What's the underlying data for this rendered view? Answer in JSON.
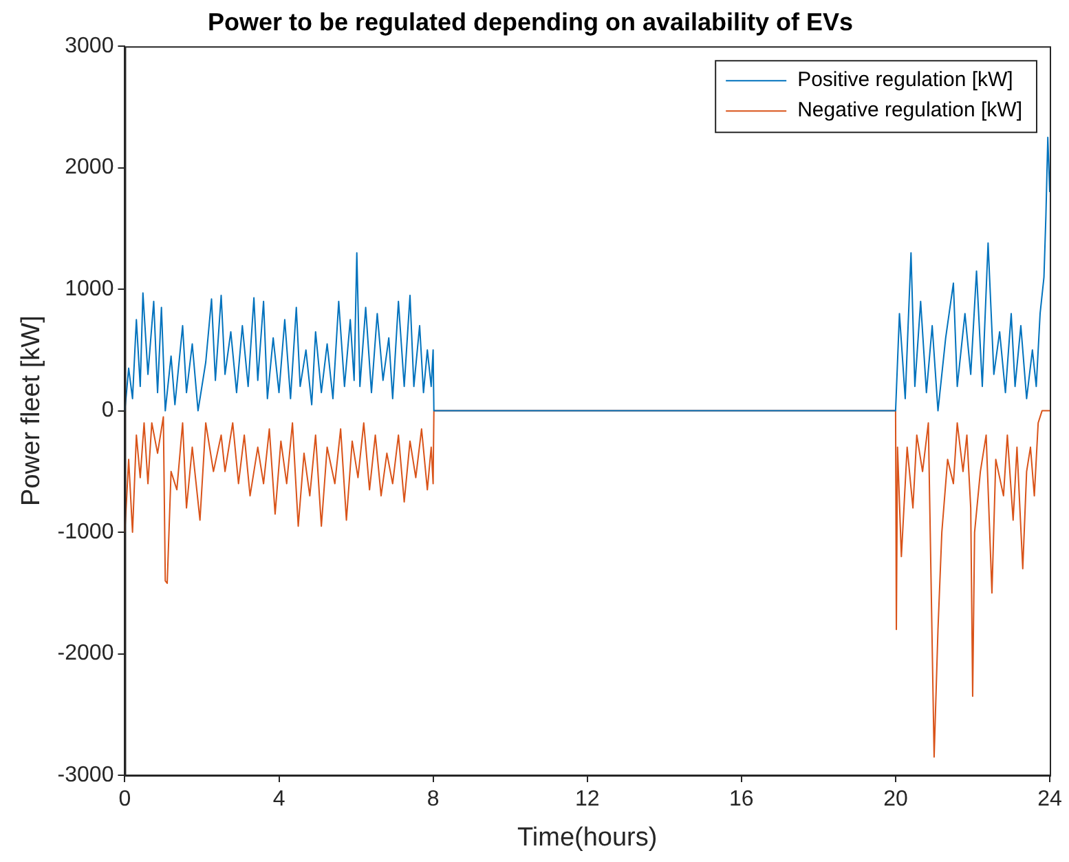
{
  "chart_data": {
    "type": "line",
    "title": "Power to be regulated depending on availability of EVs",
    "xlabel": "Time(hours)",
    "ylabel": "Power fleet [kW]",
    "xlim": [
      0,
      24
    ],
    "xticks": [
      0,
      4,
      8,
      12,
      16,
      20,
      24
    ],
    "ylim": [
      -3000,
      3000
    ],
    "yticks": [
      -3000,
      -2000,
      -1000,
      0,
      1000,
      2000,
      3000
    ],
    "grid": false,
    "legend": "top right",
    "marker": "none",
    "line_style": "solid",
    "series": [
      {
        "name": "Positive regulation [kW]",
        "color": "#0072bd",
        "x": [
          0,
          0.1,
          0.2,
          0.3,
          0.4,
          0.47,
          0.6,
          0.75,
          0.85,
          0.95,
          1.05,
          1.2,
          1.3,
          1.5,
          1.6,
          1.75,
          1.9,
          2.1,
          2.25,
          2.35,
          2.5,
          2.6,
          2.75,
          2.9,
          3.05,
          3.2,
          3.35,
          3.45,
          3.6,
          3.7,
          3.85,
          4,
          4.15,
          4.3,
          4.45,
          4.55,
          4.7,
          4.85,
          4.95,
          5.1,
          5.25,
          5.4,
          5.55,
          5.7,
          5.85,
          5.95,
          6.02,
          6.1,
          6.25,
          6.4,
          6.55,
          6.7,
          6.85,
          6.95,
          7.1,
          7.25,
          7.4,
          7.5,
          7.65,
          7.75,
          7.85,
          7.95,
          8,
          8.02,
          20,
          20.1,
          20.25,
          20.4,
          20.5,
          20.65,
          20.8,
          20.95,
          21.1,
          21.3,
          21.5,
          21.6,
          21.8,
          21.95,
          22.1,
          22.25,
          22.4,
          22.55,
          22.7,
          22.85,
          23,
          23.1,
          23.25,
          23.4,
          23.55,
          23.65,
          23.75,
          23.85,
          23.9,
          23.95,
          24
        ],
        "values": [
          0,
          350,
          100,
          750,
          200,
          970,
          300,
          900,
          150,
          850,
          0,
          450,
          50,
          700,
          150,
          550,
          0,
          400,
          920,
          250,
          950,
          300,
          650,
          150,
          700,
          200,
          930,
          250,
          900,
          100,
          600,
          150,
          750,
          100,
          850,
          200,
          500,
          50,
          650,
          150,
          550,
          100,
          900,
          200,
          750,
          250,
          1300,
          200,
          850,
          150,
          800,
          250,
          600,
          100,
          900,
          200,
          950,
          200,
          700,
          150,
          500,
          200,
          500,
          0,
          0,
          800,
          100,
          1300,
          200,
          900,
          150,
          700,
          0,
          600,
          1050,
          200,
          800,
          300,
          1150,
          200,
          1380,
          300,
          650,
          150,
          800,
          200,
          700,
          100,
          500,
          200,
          800,
          1100,
          1600,
          2250,
          1800
        ]
      },
      {
        "name": "Negative regulation [kW]",
        "color": "#d95319",
        "x": [
          0,
          0.1,
          0.2,
          0.3,
          0.4,
          0.5,
          0.6,
          0.7,
          0.85,
          1,
          1.05,
          1.1,
          1.2,
          1.35,
          1.5,
          1.6,
          1.75,
          1.95,
          2.1,
          2.3,
          2.5,
          2.6,
          2.8,
          2.95,
          3.1,
          3.25,
          3.45,
          3.6,
          3.75,
          3.9,
          4.05,
          4.2,
          4.35,
          4.5,
          4.65,
          4.8,
          4.95,
          5.1,
          5.25,
          5.45,
          5.6,
          5.75,
          5.9,
          6.05,
          6.2,
          6.35,
          6.5,
          6.65,
          6.8,
          6.95,
          7.1,
          7.25,
          7.4,
          7.55,
          7.7,
          7.85,
          7.95,
          8,
          8.02,
          20,
          20.02,
          20.05,
          20.15,
          20.3,
          20.45,
          20.55,
          20.7,
          20.85,
          21,
          21.1,
          21.2,
          21.35,
          21.5,
          21.6,
          21.75,
          21.85,
          21.95,
          22,
          22.05,
          22.2,
          22.35,
          22.5,
          22.6,
          22.8,
          22.9,
          23.05,
          23.15,
          23.3,
          23.4,
          23.5,
          23.6,
          23.7,
          23.8,
          24
        ],
        "values": [
          -1000,
          -400,
          -1000,
          -200,
          -550,
          -100,
          -600,
          -100,
          -350,
          -50,
          -1400,
          -1420,
          -500,
          -650,
          -100,
          -800,
          -300,
          -900,
          -100,
          -500,
          -200,
          -500,
          -100,
          -600,
          -200,
          -700,
          -300,
          -600,
          -150,
          -850,
          -250,
          -600,
          -100,
          -950,
          -350,
          -700,
          -200,
          -950,
          -300,
          -600,
          -150,
          -900,
          -250,
          -550,
          -100,
          -650,
          -200,
          -700,
          -350,
          -600,
          -200,
          -750,
          -250,
          -550,
          -150,
          -650,
          -300,
          -600,
          0,
          0,
          -1800,
          -300,
          -1200,
          -300,
          -800,
          -200,
          -500,
          -100,
          -2850,
          -1800,
          -1000,
          -400,
          -600,
          -100,
          -500,
          -200,
          -800,
          -2350,
          -1000,
          -500,
          -200,
          -1500,
          -400,
          -700,
          -200,
          -900,
          -300,
          -1300,
          -500,
          -300,
          -700,
          -100,
          0,
          0
        ]
      }
    ]
  }
}
